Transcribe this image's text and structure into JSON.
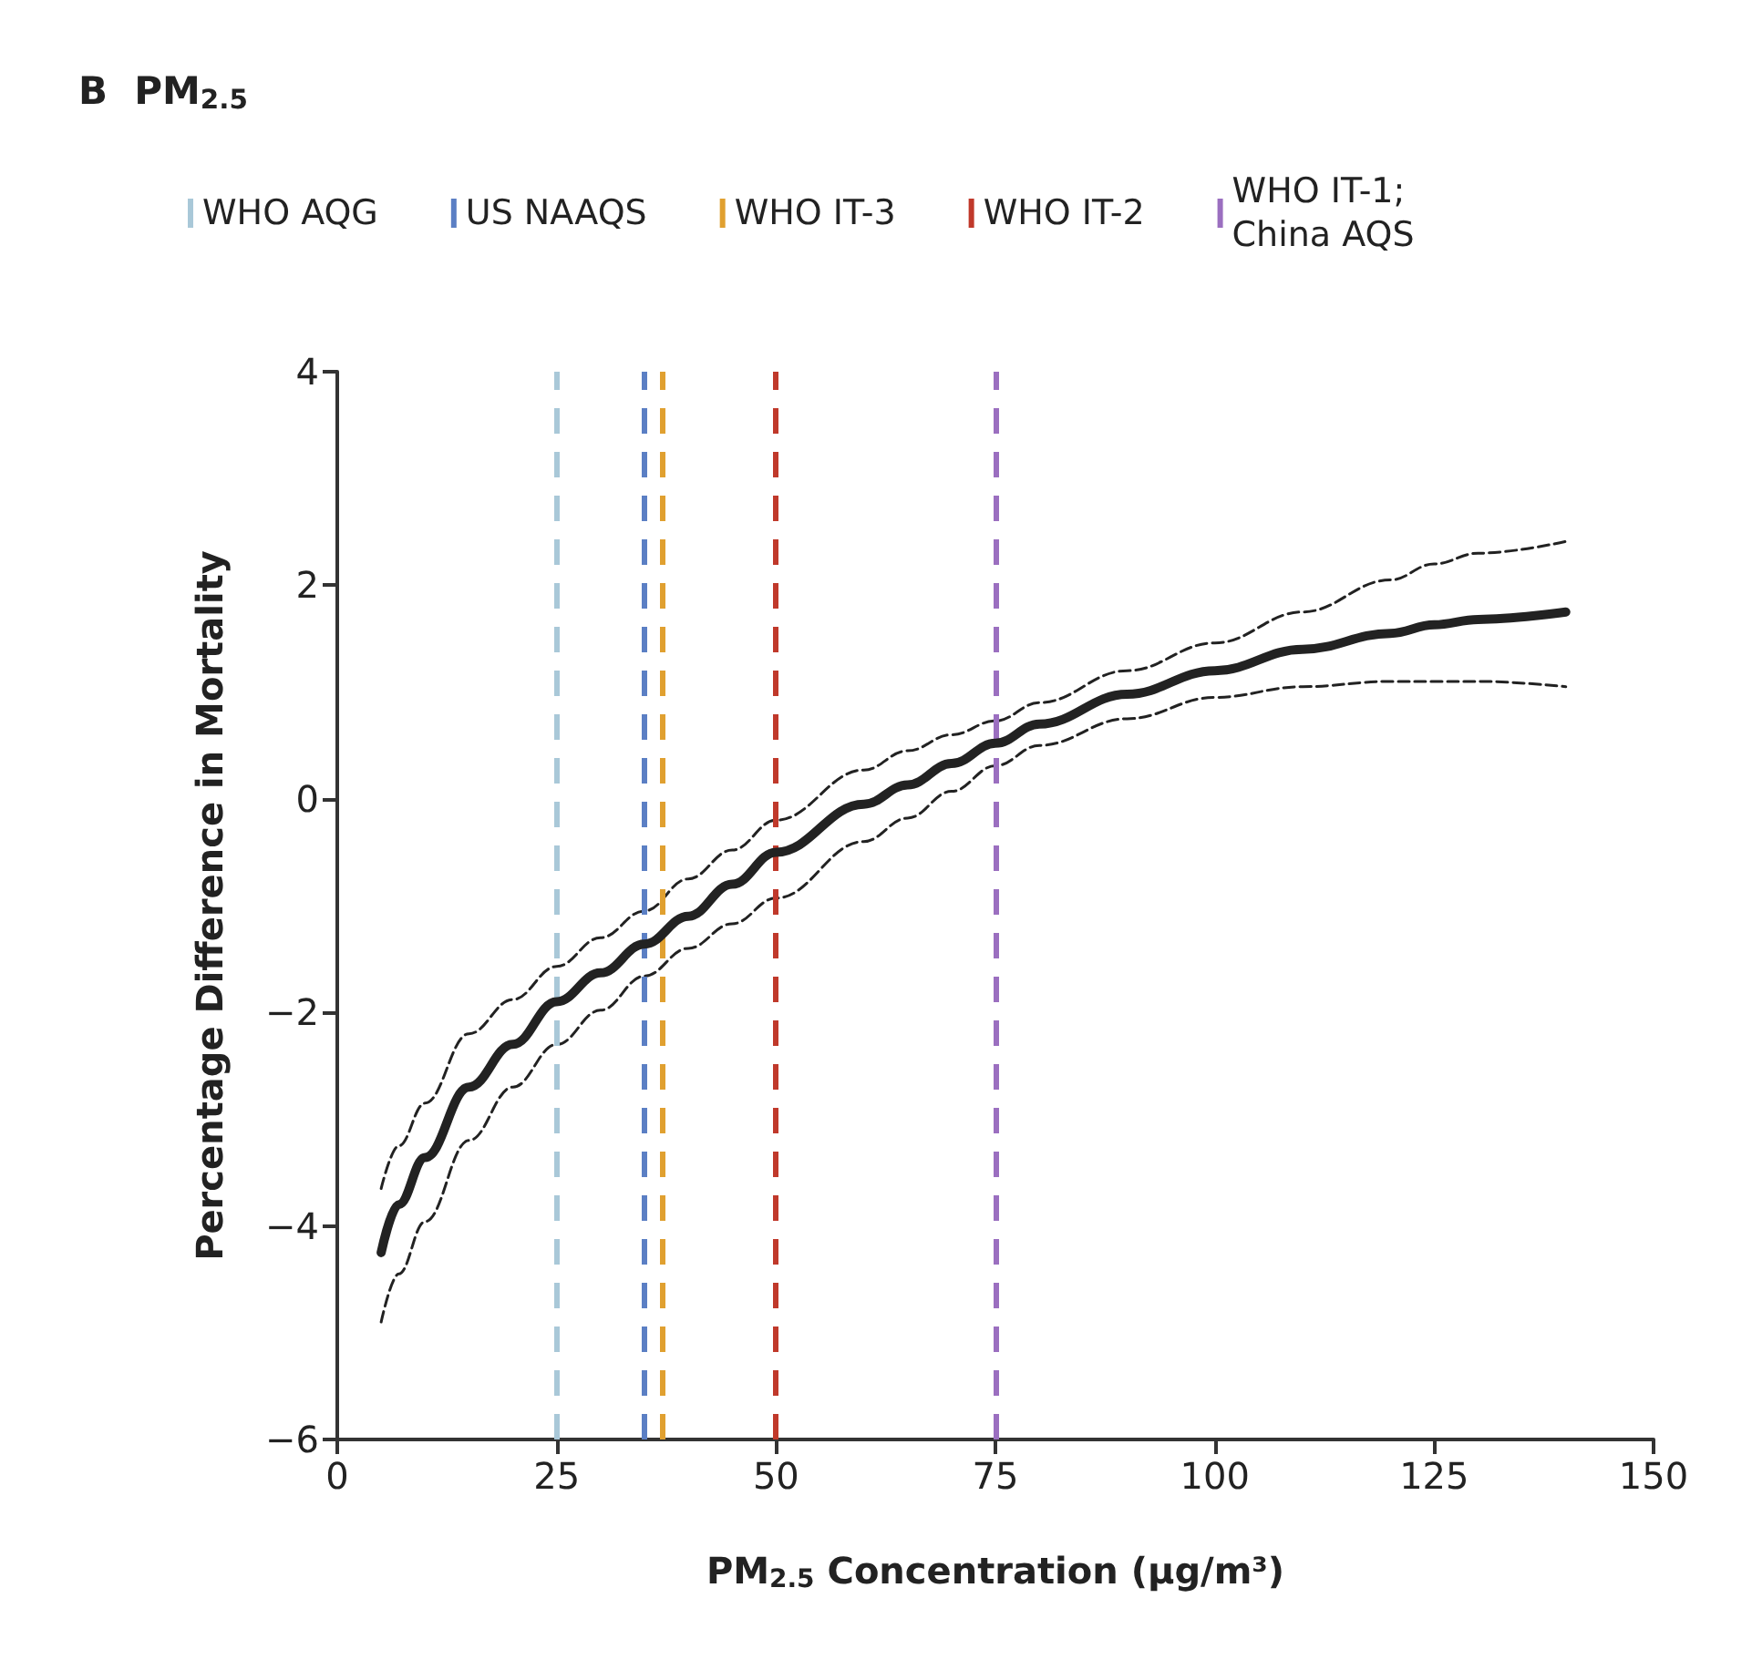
{
  "chart_data": {
    "type": "line",
    "title": "B  PM$_{2.5}$",
    "xlabel": "PM$_{2.5}$ Concentration (μg/m³)",
    "ylabel": "Percentage Difference in Mortality",
    "xlim": [
      0,
      150
    ],
    "xticks": [
      0,
      25,
      50,
      75,
      100,
      125,
      150
    ],
    "ylim": [
      -6,
      4
    ],
    "yticks": [
      {
        "value": -6,
        "label": "−6"
      },
      {
        "value": -4,
        "label": "−4"
      },
      {
        "value": -2,
        "label": "−2"
      },
      0,
      2,
      4
    ],
    "grid": false,
    "legend": "top left",
    "marker": "none",
    "x": [
      5,
      7,
      10,
      15,
      20,
      25,
      30,
      35,
      40,
      45,
      50,
      60,
      65,
      70,
      75,
      80,
      90,
      100,
      110,
      120,
      125,
      130,
      140
    ],
    "series": [
      {
        "color": "#222222",
        "line_style": "solid",
        "values": [
          -4.25,
          -3.8,
          -3.36,
          -2.7,
          -2.3,
          -1.9,
          -1.63,
          -1.36,
          -1.1,
          -0.8,
          -0.5,
          -0.05,
          0.13,
          0.33,
          0.52,
          0.7,
          0.98,
          1.2,
          1.4,
          1.55,
          1.63,
          1.68,
          1.75
        ]
      },
      {
        "color": "#222222",
        "line_style": "dashed",
        "values": [
          -4.9,
          -4.45,
          -3.96,
          -3.2,
          -2.7,
          -2.3,
          -1.98,
          -1.66,
          -1.4,
          -1.17,
          -0.93,
          -0.4,
          -0.18,
          0.07,
          0.31,
          0.5,
          0.75,
          0.95,
          1.05,
          1.1,
          1.1,
          1.1,
          1.05
        ]
      },
      {
        "color": "#222222",
        "line_style": "dashed",
        "values": [
          -3.65,
          -3.25,
          -2.85,
          -2.2,
          -1.88,
          -1.57,
          -1.3,
          -1.05,
          -0.75,
          -0.48,
          -0.2,
          0.27,
          0.45,
          0.6,
          0.73,
          0.9,
          1.2,
          1.46,
          1.75,
          2.05,
          2.2,
          2.3,
          2.41
        ]
      }
    ],
    "ref_lines": [
      {
        "axis": "x",
        "value": 25,
        "label": "WHO AQG",
        "color": "#a9c8d8",
        "line_style": "dashed"
      },
      {
        "axis": "x",
        "value": 35,
        "label": "US NAAQS",
        "color": "#5b7fc4",
        "line_style": "dashed"
      },
      {
        "axis": "x",
        "value": 37,
        "label": "WHO IT-3",
        "color": "#e0a030",
        "line_style": "dashed"
      },
      {
        "axis": "x",
        "value": 50,
        "label": "WHO IT-2",
        "color": "#c0392b",
        "line_style": "dashed"
      },
      {
        "axis": "x",
        "value": 75,
        "label": "WHO IT-1;\nChina AQS",
        "color": "#9b6fc0",
        "line_style": "dashed"
      }
    ]
  }
}
